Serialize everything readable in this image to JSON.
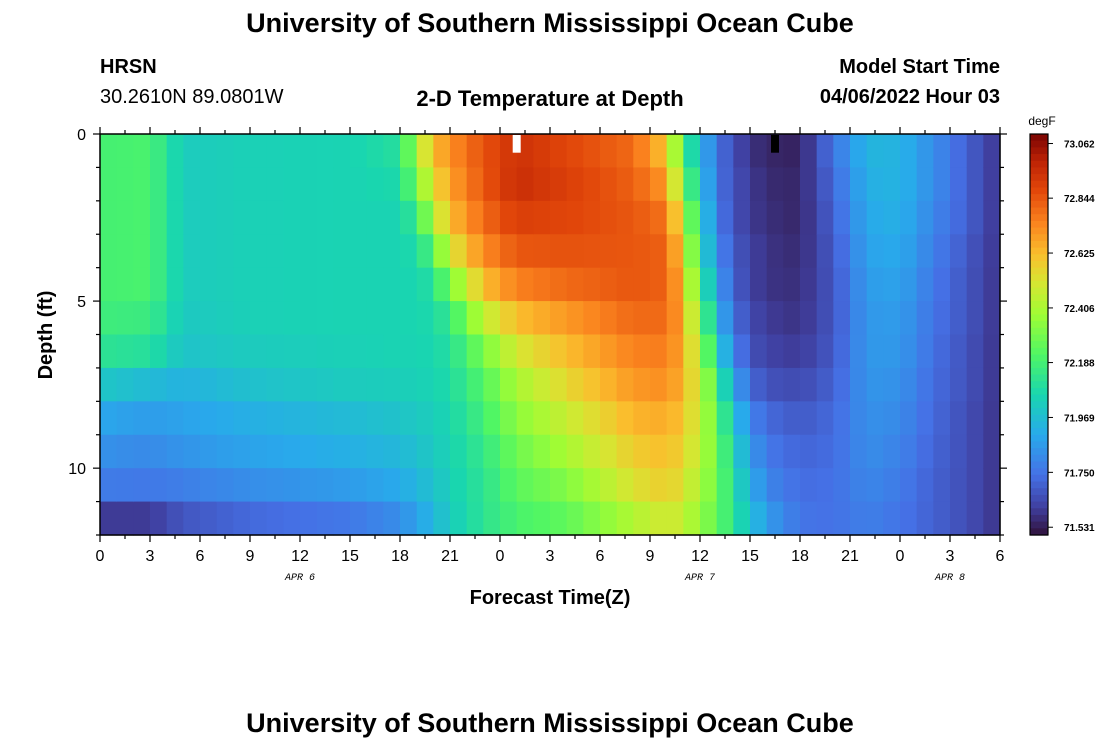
{
  "page": {
    "title_top": "University of Southern Mississippi Ocean Cube",
    "title_bottom": "University of Southern Mississippi Ocean Cube",
    "station_name": "HRSN",
    "station_coords": "30.2610N  89.0801W",
    "model_start_label": "Model Start Time",
    "model_start_value": "04/06/2022 Hour 03"
  },
  "chart_data": {
    "type": "heatmap",
    "title": "2-D Temperature at Depth",
    "xlabel": "Forecast Time(Z)",
    "ylabel": "Depth (ft)",
    "x_unit": "hours from 2022-04-06 00Z",
    "xlim": [
      0,
      54
    ],
    "ylim": [
      0,
      12
    ],
    "y_inverted": true,
    "x_ticks": [
      0,
      3,
      6,
      9,
      12,
      15,
      18,
      21,
      24,
      27,
      30,
      33,
      36,
      39,
      42,
      45,
      48,
      51,
      54
    ],
    "x_tick_labels": [
      "0",
      "3",
      "6",
      "9",
      "12",
      "15",
      "18",
      "21",
      "0",
      "3",
      "6",
      "9",
      "12",
      "15",
      "18",
      "21",
      "0",
      "3",
      "6"
    ],
    "y_ticks": [
      0,
      5,
      10
    ],
    "y_tick_labels": [
      "0",
      "5",
      "10"
    ],
    "date_labels": [
      {
        "x": 12,
        "text": "APR 6"
      },
      {
        "x": 36,
        "text": "APR 7"
      },
      {
        "x": 51,
        "text": "APR 8"
      }
    ],
    "colorbar": {
      "unit": "degF",
      "min": 71.5,
      "max": 73.1,
      "tick_values": [
        73.062,
        72.844,
        72.625,
        72.406,
        72.188,
        71.969,
        71.75,
        71.531
      ],
      "tick_labels": [
        "73.062",
        "72.844",
        "72.625",
        "72.406",
        "72.188",
        "71.969",
        "71.750",
        "71.531"
      ]
    },
    "grid": false,
    "time_step_hours": 1,
    "depth_levels_ft": [
      0.5,
      1.5,
      2.5,
      3.5,
      4.5,
      5.5,
      6.5,
      7.5,
      8.5,
      9.5,
      10.5,
      11.5
    ],
    "color_keyframes": [
      {
        "time": 0,
        "values": [
          72.19,
          72.19,
          72.19,
          72.19,
          72.19,
          72.17,
          72.12,
          72.0,
          71.89,
          71.83,
          71.77,
          71.6
        ]
      },
      {
        "time": 3,
        "values": [
          72.2,
          72.2,
          72.2,
          72.2,
          72.2,
          72.16,
          72.1,
          71.96,
          71.86,
          71.81,
          71.76,
          71.6
        ]
      },
      {
        "time": 5,
        "values": [
          72.02,
          72.02,
          72.02,
          72.02,
          72.02,
          72.01,
          71.99,
          71.93,
          71.88,
          71.84,
          71.78,
          71.67
        ]
      },
      {
        "time": 9,
        "values": [
          72.04,
          72.04,
          72.04,
          72.04,
          72.04,
          72.04,
          72.02,
          71.98,
          71.92,
          71.88,
          71.82,
          71.72
        ]
      },
      {
        "time": 15,
        "values": [
          72.05,
          72.05,
          72.05,
          72.05,
          72.05,
          72.05,
          72.04,
          72.02,
          71.96,
          71.92,
          71.86,
          71.76
        ]
      },
      {
        "time": 18,
        "values": [
          72.1,
          72.07,
          72.05,
          72.05,
          72.05,
          72.05,
          72.05,
          72.03,
          71.99,
          71.95,
          71.9,
          71.82
        ]
      },
      {
        "time": 19,
        "values": [
          72.4,
          72.3,
          72.15,
          72.08,
          72.06,
          72.06,
          72.05,
          72.04,
          72.01,
          71.98,
          71.94,
          71.88
        ]
      },
      {
        "time": 20,
        "values": [
          72.62,
          72.53,
          72.42,
          72.22,
          72.1,
          72.07,
          72.06,
          72.05,
          72.03,
          72.01,
          71.98,
          71.94
        ]
      },
      {
        "time": 21,
        "values": [
          72.72,
          72.68,
          72.62,
          72.5,
          72.3,
          72.15,
          72.1,
          72.08,
          72.06,
          72.05,
          72.04,
          72.02
        ]
      },
      {
        "time": 23,
        "values": [
          72.85,
          72.84,
          72.8,
          72.73,
          72.62,
          72.45,
          72.3,
          72.22,
          72.18,
          72.14,
          72.12,
          72.12
        ]
      },
      {
        "time": 25,
        "values": [
          72.94,
          72.95,
          72.9,
          72.84,
          72.75,
          72.62,
          72.5,
          72.4,
          72.34,
          72.28,
          72.24,
          72.2
        ]
      },
      {
        "time": 28,
        "values": [
          72.88,
          72.9,
          72.88,
          72.85,
          72.8,
          72.7,
          72.62,
          72.55,
          72.47,
          72.4,
          72.32,
          72.25
        ]
      },
      {
        "time": 32,
        "values": [
          72.8,
          72.82,
          72.84,
          72.84,
          72.84,
          72.8,
          72.75,
          72.7,
          72.64,
          72.58,
          72.52,
          72.42
        ]
      },
      {
        "time": 34,
        "values": [
          72.6,
          72.7,
          72.78,
          72.82,
          72.82,
          72.8,
          72.76,
          72.72,
          72.66,
          72.62,
          72.58,
          72.5
        ]
      },
      {
        "time": 35,
        "values": [
          72.2,
          72.3,
          72.45,
          72.55,
          72.62,
          72.66,
          72.66,
          72.64,
          72.6,
          72.56,
          72.52,
          72.46
        ]
      },
      {
        "time": 36,
        "values": [
          71.95,
          72.0,
          72.05,
          72.1,
          72.18,
          72.3,
          72.4,
          72.46,
          72.46,
          72.44,
          72.4,
          72.35
        ]
      },
      {
        "time": 37,
        "values": [
          71.75,
          71.75,
          71.78,
          71.82,
          71.88,
          71.95,
          72.05,
          72.18,
          72.25,
          72.28,
          72.28,
          72.26
        ]
      },
      {
        "time": 38,
        "values": [
          71.65,
          71.66,
          71.66,
          71.68,
          71.7,
          71.74,
          71.8,
          71.9,
          72.0,
          72.06,
          72.1,
          72.12
        ]
      },
      {
        "time": 39,
        "values": [
          71.58,
          71.6,
          71.6,
          71.62,
          71.62,
          71.64,
          71.66,
          71.72,
          71.8,
          71.86,
          71.92,
          71.98
        ]
      },
      {
        "time": 40,
        "values": [
          71.55,
          71.56,
          71.57,
          71.58,
          71.58,
          71.6,
          71.62,
          71.66,
          71.72,
          71.76,
          71.8,
          71.86
        ]
      },
      {
        "time": 42,
        "values": [
          71.54,
          71.55,
          71.55,
          71.56,
          71.57,
          71.58,
          71.6,
          71.64,
          71.68,
          71.71,
          71.73,
          71.75
        ]
      },
      {
        "time": 44,
        "values": [
          71.75,
          71.72,
          71.7,
          71.68,
          71.67,
          71.67,
          71.68,
          71.7,
          71.72,
          71.73,
          71.74,
          71.74
        ]
      },
      {
        "time": 46,
        "values": [
          71.94,
          71.92,
          71.9,
          71.88,
          71.86,
          71.85,
          71.85,
          71.84,
          71.83,
          71.82,
          71.8,
          71.78
        ]
      },
      {
        "time": 48,
        "values": [
          71.93,
          71.93,
          71.92,
          71.9,
          71.88,
          71.86,
          71.85,
          71.83,
          71.81,
          71.79,
          71.77,
          71.75
        ]
      },
      {
        "time": 50,
        "values": [
          71.82,
          71.82,
          71.8,
          71.78,
          71.76,
          71.75,
          71.74,
          71.73,
          71.72,
          71.71,
          71.7,
          71.7
        ]
      },
      {
        "time": 52,
        "values": [
          71.7,
          71.7,
          71.7,
          71.68,
          71.67,
          71.67,
          71.66,
          71.66,
          71.65,
          71.65,
          71.65,
          71.65
        ]
      },
      {
        "time": 54,
        "values": [
          71.58,
          71.58,
          71.58,
          71.58,
          71.58,
          71.58,
          71.58,
          71.58,
          71.58,
          71.58,
          71.58,
          71.58
        ]
      }
    ],
    "markers": [
      {
        "x": 25,
        "y": 0.5,
        "color": "#ffffff"
      },
      {
        "x": 40.5,
        "y": 0.5,
        "color": "#000000"
      }
    ]
  }
}
